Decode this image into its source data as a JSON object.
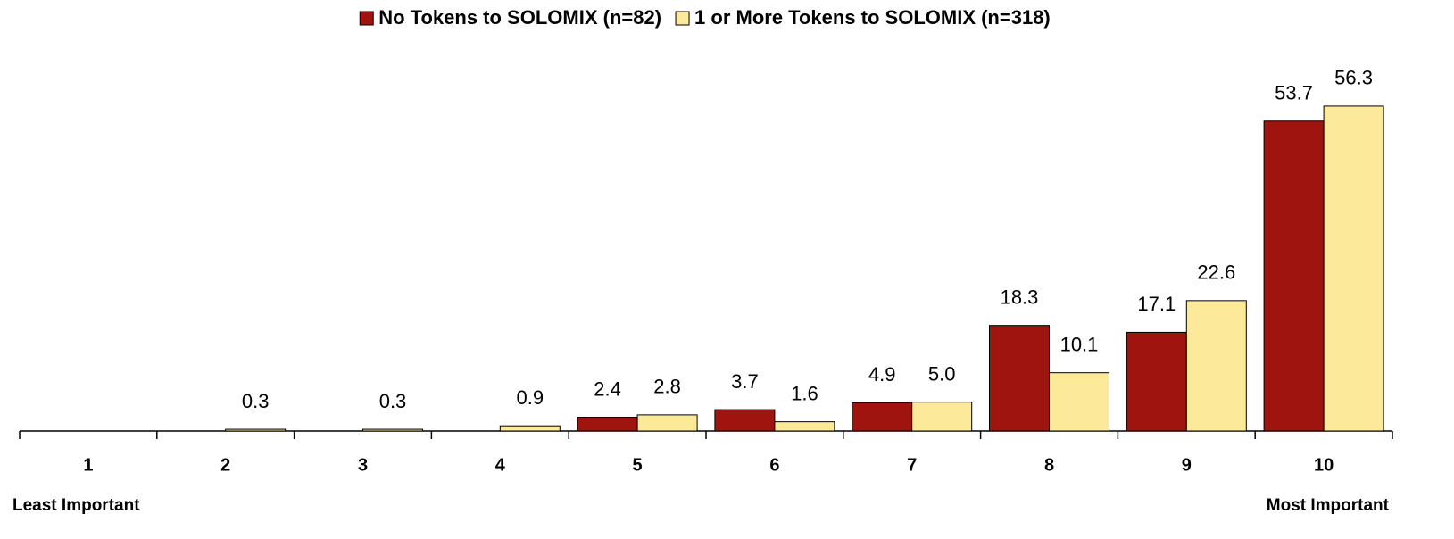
{
  "chart_data": {
    "type": "bar",
    "categories": [
      "1",
      "2",
      "3",
      "4",
      "5",
      "6",
      "7",
      "8",
      "9",
      "10"
    ],
    "series": [
      {
        "name": "No Tokens to SOLOMIX (n=82)",
        "color": "#a01410",
        "values": [
          null,
          null,
          null,
          null,
          2.4,
          3.7,
          4.9,
          18.3,
          17.1,
          53.7
        ]
      },
      {
        "name": "1 or More Tokens to SOLOMIX (n=318)",
        "color": "#fde99a",
        "values": [
          null,
          0.3,
          0.3,
          0.9,
          2.8,
          1.6,
          5.0,
          10.1,
          22.6,
          56.3
        ],
        "value_labels": [
          null,
          "0.3",
          "0.3",
          "0.9",
          "2.8",
          "1.6",
          "5.0",
          "10.1",
          "22.6",
          "56.3"
        ]
      }
    ],
    "ylim": [
      0,
      60
    ],
    "annotations": [
      "Least Important",
      "Most Important"
    ],
    "legend": "top"
  }
}
